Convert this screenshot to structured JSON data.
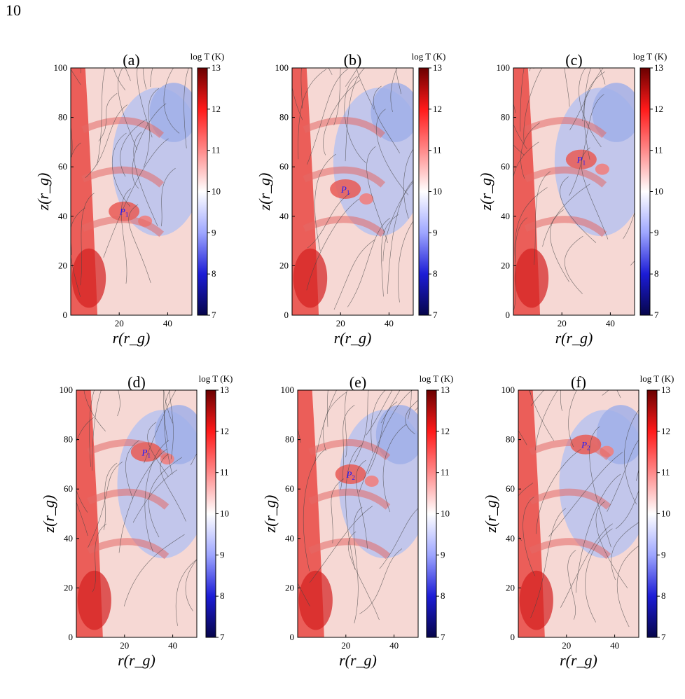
{
  "page_number": "10",
  "figure": {
    "axes": {
      "xlabel": "r(r_g)",
      "ylabel": "z(r_g)",
      "xticks": [
        "20",
        "40"
      ],
      "yticks": [
        "0",
        "20",
        "40",
        "60",
        "80",
        "100"
      ]
    },
    "colorbar": {
      "title": "log T  (K)",
      "ticks": [
        "7",
        "8",
        "9",
        "10",
        "11",
        "12",
        "13"
      ],
      "cmap_colors": [
        "#06054a",
        "#1c1cd6",
        "#9ea6ff",
        "#ffffff",
        "#ff8a8a",
        "#ff1a1a",
        "#6a0000"
      ]
    },
    "panels": [
      {
        "label": "(a)",
        "marker": "P1",
        "marker_r": 22,
        "marker_z": 42
      },
      {
        "label": "(b)",
        "marker": "P1",
        "marker_r": 22,
        "marker_z": 51
      },
      {
        "label": "(c)",
        "marker": "P1",
        "marker_r": 28,
        "marker_z": 63
      },
      {
        "label": "(d)",
        "marker": "P1",
        "marker_r": 29,
        "marker_z": 75
      },
      {
        "label": "(e)",
        "marker": "P2",
        "marker_r": 22,
        "marker_z": 66
      },
      {
        "label": "(f)",
        "marker": "P2",
        "marker_r": 28,
        "marker_z": 78
      }
    ]
  }
}
